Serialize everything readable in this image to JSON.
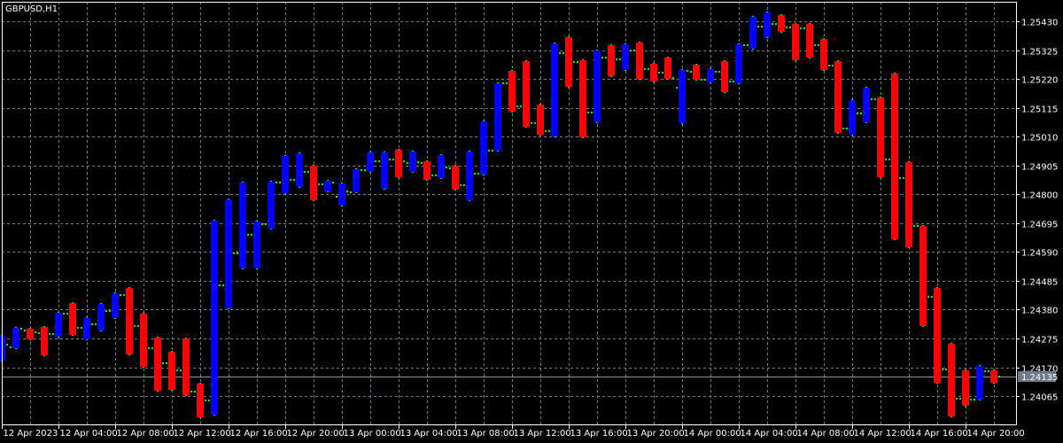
{
  "chart_data": {
    "type": "candlestick",
    "title": "GBPUSD,H1",
    "symbol": "GBPUSD",
    "timeframe": "H1",
    "current_price": "1.24135",
    "ylim": [
      1.23962,
      1.25501
    ],
    "grid": true,
    "colors": {
      "background": "#000000",
      "up": "#0000ff",
      "down": "#ff0000",
      "open_close_ticks": "#00ff00",
      "grid": "#6f7f8f",
      "current_price_label": "#6c7a89"
    },
    "y_ticks": [
      "1.25430",
      "1.25325",
      "1.25220",
      "1.25115",
      "1.25010",
      "1.24905",
      "1.24800",
      "1.24695",
      "1.24590",
      "1.24485",
      "1.24380",
      "1.24275",
      "1.24170",
      "1.24065"
    ],
    "x_ticks": [
      "12 Apr 2023",
      "12 Apr 04:00",
      "12 Apr 08:00",
      "12 Apr 12:00",
      "12 Apr 16:00",
      "12 Apr 20:00",
      "13 Apr 00:00",
      "13 Apr 04:00",
      "13 Apr 08:00",
      "13 Apr 12:00",
      "13 Apr 16:00",
      "13 Apr 20:00",
      "14 Apr 00:00",
      "14 Apr 04:00",
      "14 Apr 08:00",
      "14 Apr 12:00",
      "14 Apr 16:00",
      "14 Apr 20:00"
    ],
    "first_bar": "12 Apr 2023 00:00",
    "ohlc": [
      [
        1.24217,
        1.24285,
        1.24194,
        1.24252
      ],
      [
        1.24243,
        1.24314,
        1.24239,
        1.2431
      ],
      [
        1.24304,
        1.2431,
        1.24272,
        1.24298
      ],
      [
        1.24294,
        1.24317,
        1.24214,
        1.24291
      ],
      [
        1.24291,
        1.24368,
        1.24281,
        1.24365
      ],
      [
        1.24365,
        1.24404,
        1.24288,
        1.24314
      ],
      [
        1.24314,
        1.24349,
        1.24272,
        1.24327
      ],
      [
        1.24327,
        1.24401,
        1.24304,
        1.24375
      ],
      [
        1.24375,
        1.24439,
        1.24349,
        1.24433
      ],
      [
        1.24433,
        1.24459,
        1.24217,
        1.2432
      ],
      [
        1.2432,
        1.24365,
        1.24172,
        1.24239
      ],
      [
        1.24239,
        1.24278,
        1.24085,
        1.24185
      ],
      [
        1.24185,
        1.24227,
        1.24088,
        1.24159
      ],
      [
        1.24159,
        1.24275,
        1.24068,
        1.24081
      ],
      [
        1.24081,
        1.2411,
        1.23988,
        1.24049
      ],
      [
        1.24049,
        1.24704,
        1.23997,
        1.24468
      ],
      [
        1.24468,
        1.24781,
        1.24385,
        1.24585
      ],
      [
        1.24585,
        1.24843,
        1.2453,
        1.24652
      ],
      [
        1.24652,
        1.24701,
        1.2453,
        1.24691
      ],
      [
        1.24691,
        1.24846,
        1.24675,
        1.24843
      ],
      [
        1.24843,
        1.2494,
        1.24804,
        1.24852
      ],
      [
        1.24852,
        1.24949,
        1.24827,
        1.24882
      ],
      [
        1.24882,
        1.24904,
        1.24778,
        1.24836
      ],
      [
        1.24836,
        1.24849,
        1.24811,
        1.24843
      ],
      [
        1.24791,
        1.2484,
        1.24759,
        1.24811
      ],
      [
        1.24807,
        1.24891,
        1.24807,
        1.24888
      ],
      [
        1.24888,
        1.24953,
        1.24882,
        1.2492
      ],
      [
        1.2492,
        1.24953,
        1.2482,
        1.24927
      ],
      [
        1.24927,
        1.24962,
        1.24862,
        1.2492
      ],
      [
        1.24914,
        1.24956,
        1.24882,
        1.24917
      ],
      [
        1.24914,
        1.2492,
        1.24852,
        1.24869
      ],
      [
        1.24869,
        1.24943,
        1.24859,
        1.24898
      ],
      [
        1.24894,
        1.24904,
        1.24817,
        1.24833
      ],
      [
        1.24833,
        1.24956,
        1.24778,
        1.24875
      ],
      [
        1.24875,
        1.25065,
        1.24872,
        1.24959
      ],
      [
        1.24959,
        1.25204,
        1.24959,
        1.25204
      ],
      [
        1.25204,
        1.25249,
        1.25101,
        1.2512
      ],
      [
        1.2512,
        1.25285,
        1.25046,
        1.25059
      ],
      [
        1.25059,
        1.25127,
        1.25017,
        1.2503
      ],
      [
        1.2503,
        1.25349,
        1.25011,
        1.25314
      ],
      [
        1.25314,
        1.25372,
        1.25191,
        1.25282
      ],
      [
        1.25282,
        1.25288,
        1.25007,
        1.25098
      ],
      [
        1.25098,
        1.25324,
        1.25062,
        1.25298
      ],
      [
        1.25298,
        1.25343,
        1.2523,
        1.25291
      ],
      [
        1.25291,
        1.25346,
        1.25253,
        1.25324
      ],
      [
        1.25324,
        1.25353,
        1.2522,
        1.25256
      ],
      [
        1.25256,
        1.25275,
        1.25211,
        1.25243
      ],
      [
        1.25243,
        1.25298,
        1.2522,
        1.25224
      ],
      [
        1.25188,
        1.25253,
        1.25059,
        1.25249
      ],
      [
        1.25246,
        1.25272,
        1.25217,
        1.25217
      ],
      [
        1.25217,
        1.25256,
        1.25207,
        1.25246
      ],
      [
        1.25246,
        1.25285,
        1.25172,
        1.25211
      ],
      [
        1.25211,
        1.25346,
        1.25204,
        1.25343
      ],
      [
        1.25343,
        1.25446,
        1.2533,
        1.25411
      ],
      [
        1.25411,
        1.25462,
        1.25372,
        1.2542
      ],
      [
        1.2542,
        1.25453,
        1.25391,
        1.25407
      ],
      [
        1.25407,
        1.2542,
        1.25288,
        1.25404
      ],
      [
        1.25404,
        1.2542,
        1.25298,
        1.25343
      ],
      [
        1.25343,
        1.25365,
        1.25253,
        1.25269
      ],
      [
        1.25269,
        1.25285,
        1.25023,
        1.2504
      ],
      [
        1.2504,
        1.25143,
        1.25017,
        1.25094
      ],
      [
        1.25094,
        1.25188,
        1.25062,
        1.25146
      ],
      [
        1.25146,
        1.25152,
        1.24862,
        1.24927
      ],
      [
        1.24927,
        1.2524,
        1.24636,
        1.24859
      ],
      [
        1.24859,
        1.24917,
        1.24607,
        1.24685
      ],
      [
        1.24685,
        1.24685,
        1.2432,
        1.24427
      ],
      [
        1.24427,
        1.24459,
        1.24114,
        1.24162
      ],
      [
        1.24162,
        1.24256,
        1.23991,
        1.24056
      ],
      [
        1.24056,
        1.24159,
        1.2403,
        1.24053
      ],
      [
        1.24053,
        1.24175,
        1.24052,
        1.24156
      ],
      [
        1.24156,
        1.24159,
        1.24114,
        1.24135
      ]
    ]
  }
}
